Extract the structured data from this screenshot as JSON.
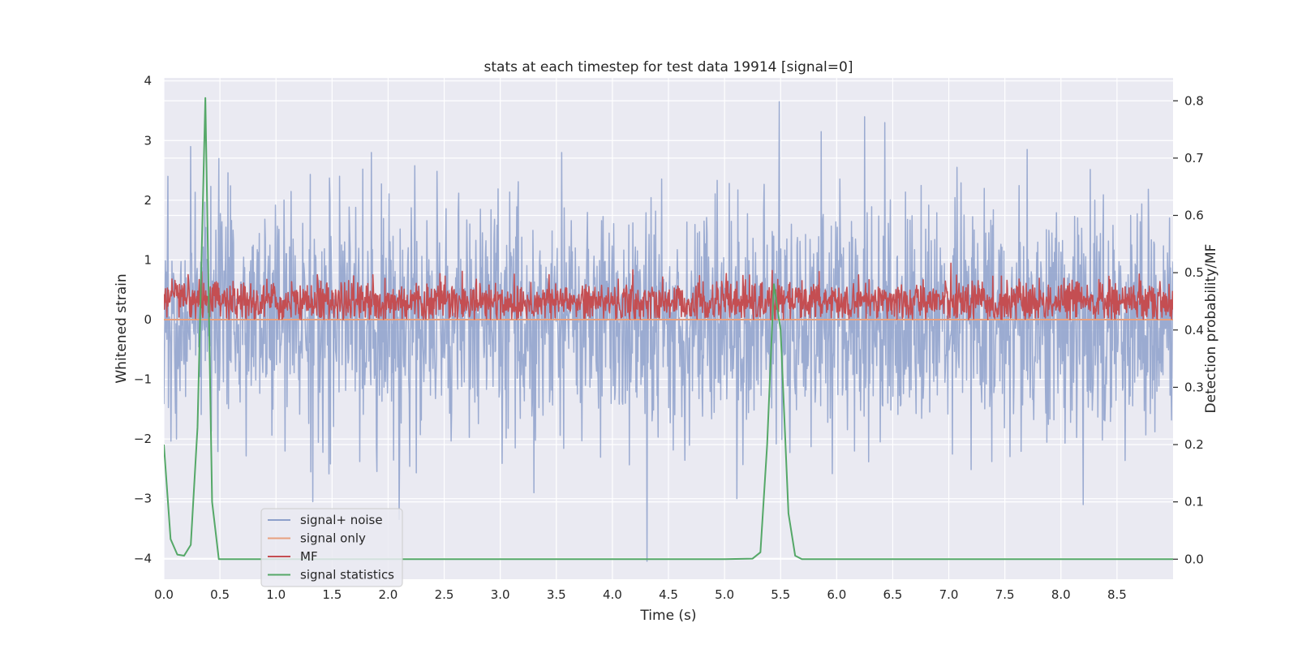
{
  "chart_data": {
    "type": "line",
    "title": "stats at each timestep for test data 19914 [signal=0]",
    "xlabel": "Time (s)",
    "ylabel": "Whitened strain",
    "y2label": "Detection probability/MF",
    "xlim": [
      0.0,
      9.0
    ],
    "ylim": [
      -4.35,
      4.05
    ],
    "y2lim": [
      -0.035,
      0.84
    ],
    "xticks": [
      0.0,
      0.5,
      1.0,
      1.5,
      2.0,
      2.5,
      3.0,
      3.5,
      4.0,
      4.5,
      5.0,
      5.5,
      6.0,
      6.5,
      7.0,
      7.5,
      8.0,
      8.5
    ],
    "xtick_labels": [
      "0.0",
      "0.5",
      "1.0",
      "1.5",
      "2.0",
      "2.5",
      "3.0",
      "3.5",
      "4.0",
      "4.5",
      "5.0",
      "5.5",
      "6.0",
      "6.5",
      "7.0",
      "7.5",
      "8.0",
      "8.5"
    ],
    "yticks": [
      -4,
      -3,
      -2,
      -1,
      0,
      1,
      2,
      3,
      4
    ],
    "ytick_labels": [
      "−4",
      "−3",
      "−2",
      "−1",
      "0",
      "1",
      "2",
      "3",
      "4"
    ],
    "y2ticks": [
      0.0,
      0.1,
      0.2,
      0.3,
      0.4,
      0.5,
      0.6,
      0.7,
      0.8
    ],
    "y2tick_labels": [
      "0.0",
      "0.1",
      "0.2",
      "0.3",
      "0.4",
      "0.5",
      "0.6",
      "0.7",
      "0.8"
    ],
    "grid": true,
    "legend_position": "lower-left",
    "series": [
      {
        "name": "signal+ noise",
        "axis": "left",
        "color": "#8da0cb",
        "note_kind": "dense noise",
        "samples": 2000,
        "sigma": 0.95,
        "spikes": [
          {
            "x": 0.24,
            "y": 2.9
          },
          {
            "x": 0.49,
            "y": 2.7
          },
          {
            "x": 1.85,
            "y": 2.8
          },
          {
            "x": 3.55,
            "y": 2.8
          },
          {
            "x": 5.49,
            "y": 3.65
          },
          {
            "x": 5.86,
            "y": 3.15
          },
          {
            "x": 6.25,
            "y": 3.4
          },
          {
            "x": 6.43,
            "y": 3.3
          },
          {
            "x": 7.7,
            "y": 2.85
          },
          {
            "x": 8.2,
            "y": -3.1
          },
          {
            "x": 4.31,
            "y": -4.05
          },
          {
            "x": 1.33,
            "y": -3.05
          },
          {
            "x": 2.1,
            "y": -3.35
          },
          {
            "x": 3.3,
            "y": -2.9
          },
          {
            "x": 5.11,
            "y": -3.0
          }
        ]
      },
      {
        "name": "signal only",
        "axis": "left",
        "color": "#e8a07e",
        "x": [
          0.0,
          9.0
        ],
        "y": [
          0.0,
          0.0
        ]
      },
      {
        "name": "MF",
        "axis": "left",
        "color": "#c44e52",
        "note_kind": "dense noise",
        "samples": 2000,
        "center": 0.3,
        "sigma": 0.18,
        "floor": 0.0,
        "max": 0.95
      },
      {
        "name": "signal statistics",
        "axis": "right",
        "color": "#55a868",
        "x": [
          0.0,
          0.06,
          0.12,
          0.18,
          0.24,
          0.3,
          0.37,
          0.43,
          0.49,
          0.55,
          1.0,
          2.0,
          3.0,
          4.0,
          5.0,
          5.25,
          5.32,
          5.38,
          5.44,
          5.5,
          5.57,
          5.63,
          5.69,
          6.0,
          7.0,
          8.0,
          9.0
        ],
        "y": [
          0.2,
          0.035,
          0.008,
          0.006,
          0.025,
          0.23,
          0.805,
          0.1,
          0.0,
          0.0,
          0.0,
          0.0,
          0.0,
          0.0,
          0.0,
          0.001,
          0.012,
          0.2,
          0.48,
          0.4,
          0.08,
          0.006,
          0.0,
          0.0,
          0.0,
          0.0,
          0.0
        ]
      }
    ]
  }
}
